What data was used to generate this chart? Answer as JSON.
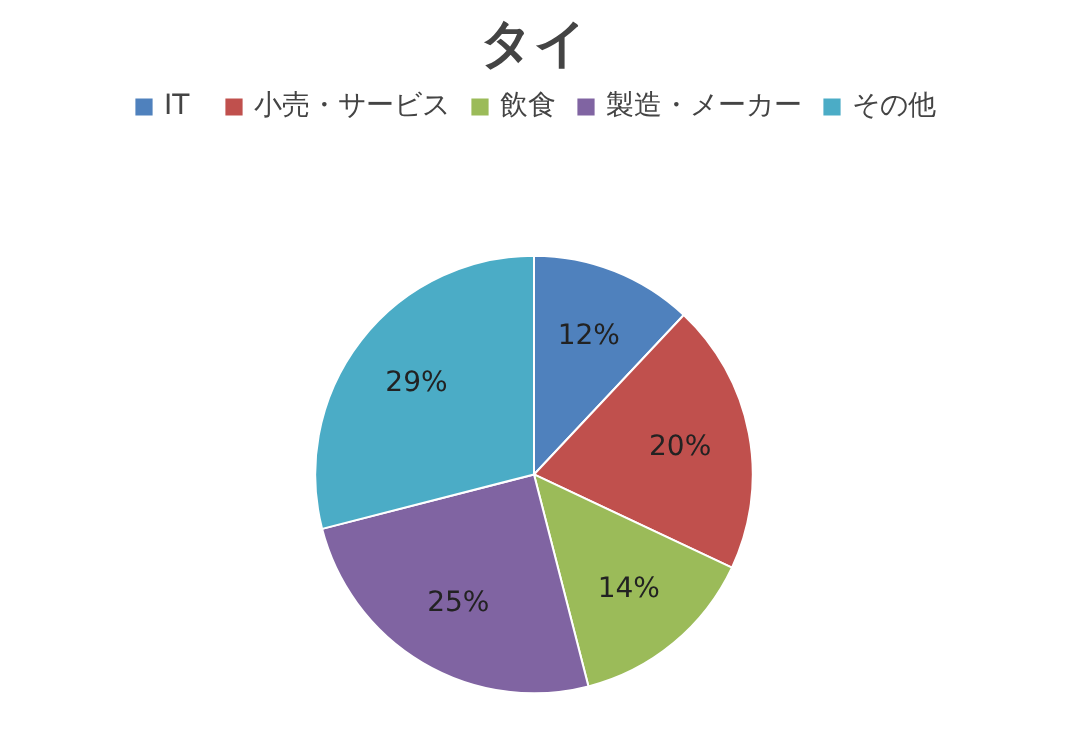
{
  "chart_data": {
    "type": "pie",
    "title": "タイ",
    "categories": [
      "IT",
      "小売・サービス",
      "飲食",
      "製造・メーカー",
      "その他"
    ],
    "values": [
      12,
      20,
      14,
      25,
      29
    ],
    "colors": [
      "#4f81bd",
      "#c0504d",
      "#9bbb59",
      "#8064a2",
      "#4bacc6"
    ],
    "value_labels": [
      "12%",
      "20%",
      "14%",
      "25%",
      "29%"
    ],
    "legend": "top"
  }
}
